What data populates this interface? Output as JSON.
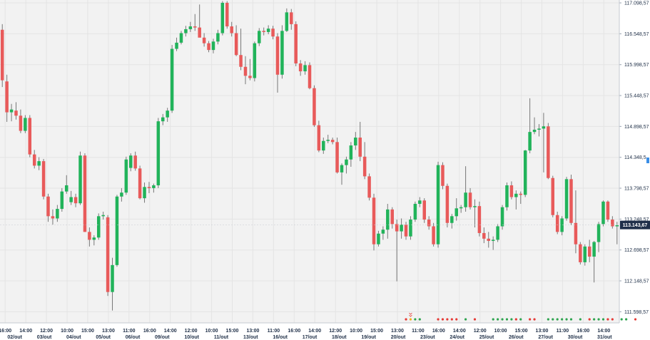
{
  "chart_data": {
    "type": "candlestick",
    "title": "",
    "xlabel": "",
    "ylabel": "",
    "ylim": [
      111400,
      117150
    ],
    "grid": true,
    "colors": {
      "up": "#21b35a",
      "down": "#e85a5a",
      "wick": "#777777",
      "grid": "#e4e4e4",
      "plot_bg": "#f2f2f2",
      "last_price_bg": "#1f2f4a",
      "marker_red": "#e53935",
      "marker_green": "#2ea44f",
      "marker_yellow": "#f2b01e"
    },
    "y_ticks": [
      "117.098,57",
      "116.548,57",
      "115.998,57",
      "115.448,57",
      "114.898,57",
      "114.348,5",
      "113.798,57",
      "113.248,57",
      "112.698,57",
      "112.148,57",
      "111.598,57"
    ],
    "y_tick_values": [
      117098.57,
      116548.57,
      115998.57,
      115448.57,
      114898.57,
      114348.5,
      113798.57,
      113248.57,
      112698.57,
      112148.57,
      111598.57
    ],
    "last_price": {
      "label": "113.143,67",
      "value": 113143.67
    },
    "x_time_labels": [
      "16:00",
      "14:00",
      "12:00",
      "10:00",
      "15:00",
      "13:00",
      "11:00",
      "16:00",
      "14:00",
      "12:00",
      "10:00",
      "15:00",
      "13:00",
      "11:00",
      "16:00",
      "14:00",
      "12:00",
      "10:00",
      "15:00",
      "13:00",
      "11:00",
      "16:00",
      "14:00",
      "12:00",
      "10:00",
      "15:00",
      "13:00",
      "11:00",
      "16:00",
      "14:00"
    ],
    "x_date_labels": [
      "02/out",
      "03/out",
      "04/out",
      "05/out",
      "06/out",
      "09/out",
      "10/out",
      "11/out",
      "13/out",
      "16/out",
      "17/out",
      "18/out",
      "19/out",
      "20/out",
      "23/out",
      "24/out",
      "25/out",
      "26/out",
      "27/out",
      "30/out",
      "31/out"
    ],
    "candles": [
      {
        "o": 116620,
        "h": 116720,
        "l": 115600,
        "c": 115720
      },
      {
        "o": 115700,
        "h": 115820,
        "l": 114980,
        "c": 115150
      },
      {
        "o": 115150,
        "h": 115300,
        "l": 114990,
        "c": 115200
      },
      {
        "o": 115180,
        "h": 115330,
        "l": 115020,
        "c": 115090
      },
      {
        "o": 115090,
        "h": 115200,
        "l": 114780,
        "c": 114820
      },
      {
        "o": 114820,
        "h": 115100,
        "l": 114780,
        "c": 115050
      },
      {
        "o": 115050,
        "h": 115100,
        "l": 114350,
        "c": 114400
      },
      {
        "o": 114400,
        "h": 114480,
        "l": 114150,
        "c": 114200
      },
      {
        "o": 114200,
        "h": 114350,
        "l": 114120,
        "c": 114280
      },
      {
        "o": 114280,
        "h": 114320,
        "l": 113600,
        "c": 113650
      },
      {
        "o": 113650,
        "h": 113700,
        "l": 113200,
        "c": 113300
      },
      {
        "o": 113300,
        "h": 113420,
        "l": 113150,
        "c": 113260
      },
      {
        "o": 113260,
        "h": 113500,
        "l": 113200,
        "c": 113430
      },
      {
        "o": 113430,
        "h": 113800,
        "l": 113380,
        "c": 113740
      },
      {
        "o": 113740,
        "h": 114030,
        "l": 113700,
        "c": 113850
      },
      {
        "o": 113550,
        "h": 113750,
        "l": 113500,
        "c": 113640
      },
      {
        "o": 113640,
        "h": 113700,
        "l": 113460,
        "c": 113530
      },
      {
        "o": 113530,
        "h": 114450,
        "l": 113500,
        "c": 114380
      },
      {
        "o": 114380,
        "h": 114420,
        "l": 113020,
        "c": 113020
      },
      {
        "o": 113020,
        "h": 113100,
        "l": 112760,
        "c": 112880
      },
      {
        "o": 112880,
        "h": 112960,
        "l": 112780,
        "c": 112920
      },
      {
        "o": 112920,
        "h": 113350,
        "l": 112880,
        "c": 113300
      },
      {
        "o": 113300,
        "h": 113380,
        "l": 113240,
        "c": 113320
      },
      {
        "o": 113280,
        "h": 113320,
        "l": 111880,
        "c": 111950
      },
      {
        "o": 111950,
        "h": 112560,
        "l": 111620,
        "c": 112430
      },
      {
        "o": 112430,
        "h": 113680,
        "l": 112400,
        "c": 113650
      },
      {
        "o": 113650,
        "h": 113800,
        "l": 113560,
        "c": 113720
      },
      {
        "o": 113720,
        "h": 114360,
        "l": 113680,
        "c": 114310
      },
      {
        "o": 114160,
        "h": 114420,
        "l": 114100,
        "c": 114380
      },
      {
        "o": 114380,
        "h": 114450,
        "l": 114110,
        "c": 114150
      },
      {
        "o": 114150,
        "h": 114200,
        "l": 113600,
        "c": 113620
      },
      {
        "o": 113620,
        "h": 113900,
        "l": 113540,
        "c": 113820
      },
      {
        "o": 113820,
        "h": 113910,
        "l": 113710,
        "c": 113800
      },
      {
        "o": 113800,
        "h": 113880,
        "l": 113720,
        "c": 113850
      },
      {
        "o": 113850,
        "h": 115050,
        "l": 113800,
        "c": 114990
      },
      {
        "o": 114990,
        "h": 115120,
        "l": 114920,
        "c": 115060
      },
      {
        "o": 115060,
        "h": 115230,
        "l": 114980,
        "c": 115180
      },
      {
        "o": 115180,
        "h": 116350,
        "l": 115140,
        "c": 116280
      },
      {
        "o": 116280,
        "h": 116480,
        "l": 116240,
        "c": 116390
      },
      {
        "o": 116390,
        "h": 116600,
        "l": 116360,
        "c": 116560
      },
      {
        "o": 116560,
        "h": 116690,
        "l": 116500,
        "c": 116630
      },
      {
        "o": 116630,
        "h": 116760,
        "l": 116580,
        "c": 116680
      },
      {
        "o": 116680,
        "h": 116900,
        "l": 116600,
        "c": 116660
      },
      {
        "o": 116660,
        "h": 117070,
        "l": 116530,
        "c": 116480
      },
      {
        "o": 116480,
        "h": 116560,
        "l": 116320,
        "c": 116380
      },
      {
        "o": 116380,
        "h": 116420,
        "l": 116220,
        "c": 116260
      },
      {
        "o": 116260,
        "h": 116460,
        "l": 116200,
        "c": 116410
      },
      {
        "o": 116410,
        "h": 116620,
        "l": 116360,
        "c": 116560
      },
      {
        "o": 116560,
        "h": 117130,
        "l": 116520,
        "c": 117100
      },
      {
        "o": 117100,
        "h": 117130,
        "l": 116640,
        "c": 116680
      },
      {
        "o": 116680,
        "h": 116760,
        "l": 116500,
        "c": 116560
      },
      {
        "o": 116560,
        "h": 116700,
        "l": 116150,
        "c": 116170
      },
      {
        "o": 116170,
        "h": 116640,
        "l": 115900,
        "c": 115960
      },
      {
        "o": 115960,
        "h": 116150,
        "l": 115650,
        "c": 115800
      },
      {
        "o": 115800,
        "h": 116100,
        "l": 115720,
        "c": 115760
      },
      {
        "o": 115760,
        "h": 116410,
        "l": 115700,
        "c": 116380
      },
      {
        "o": 116380,
        "h": 116650,
        "l": 116330,
        "c": 116600
      },
      {
        "o": 116600,
        "h": 116660,
        "l": 116520,
        "c": 116580
      },
      {
        "o": 116580,
        "h": 116700,
        "l": 116540,
        "c": 116640
      },
      {
        "o": 116640,
        "h": 116690,
        "l": 116450,
        "c": 116500
      },
      {
        "o": 116500,
        "h": 116560,
        "l": 115500,
        "c": 115820
      },
      {
        "o": 115820,
        "h": 116700,
        "l": 115750,
        "c": 116600
      },
      {
        "o": 116600,
        "h": 117000,
        "l": 116580,
        "c": 116930
      },
      {
        "o": 116930,
        "h": 116990,
        "l": 116620,
        "c": 116720
      },
      {
        "o": 116720,
        "h": 116770,
        "l": 115970,
        "c": 116020
      },
      {
        "o": 116020,
        "h": 116080,
        "l": 115800,
        "c": 115880
      },
      {
        "o": 115880,
        "h": 116060,
        "l": 115820,
        "c": 115990
      },
      {
        "o": 115990,
        "h": 116040,
        "l": 115560,
        "c": 115580
      },
      {
        "o": 115580,
        "h": 115630,
        "l": 114890,
        "c": 114920
      },
      {
        "o": 114920,
        "h": 115000,
        "l": 114440,
        "c": 114470
      },
      {
        "o": 114470,
        "h": 114700,
        "l": 114410,
        "c": 114640
      },
      {
        "o": 114640,
        "h": 114750,
        "l": 114600,
        "c": 114660
      },
      {
        "o": 114660,
        "h": 114700,
        "l": 114580,
        "c": 114620
      },
      {
        "o": 114620,
        "h": 114700,
        "l": 114060,
        "c": 114080
      },
      {
        "o": 114080,
        "h": 114240,
        "l": 113860,
        "c": 114210
      },
      {
        "o": 114210,
        "h": 114360,
        "l": 114060,
        "c": 114310
      },
      {
        "o": 114310,
        "h": 114620,
        "l": 114180,
        "c": 114560
      },
      {
        "o": 114560,
        "h": 114800,
        "l": 114480,
        "c": 114700
      },
      {
        "o": 114700,
        "h": 114980,
        "l": 114280,
        "c": 114360
      },
      {
        "o": 114360,
        "h": 114620,
        "l": 113960,
        "c": 114010
      },
      {
        "o": 114010,
        "h": 114060,
        "l": 113580,
        "c": 113630
      },
      {
        "o": 113630,
        "h": 113700,
        "l": 112690,
        "c": 112800
      },
      {
        "o": 112800,
        "h": 113040,
        "l": 112760,
        "c": 112990
      },
      {
        "o": 112990,
        "h": 113120,
        "l": 112880,
        "c": 113060
      },
      {
        "o": 113060,
        "h": 113520,
        "l": 112900,
        "c": 113420
      },
      {
        "o": 113420,
        "h": 113460,
        "l": 113080,
        "c": 113160
      },
      {
        "o": 113160,
        "h": 113240,
        "l": 112140,
        "c": 113030
      },
      {
        "o": 113030,
        "h": 113260,
        "l": 112900,
        "c": 113150
      },
      {
        "o": 113150,
        "h": 113200,
        "l": 112880,
        "c": 112940
      },
      {
        "o": 112940,
        "h": 113300,
        "l": 112880,
        "c": 113240
      },
      {
        "o": 113240,
        "h": 113560,
        "l": 113200,
        "c": 113520
      },
      {
        "o": 113520,
        "h": 113640,
        "l": 113460,
        "c": 113580
      },
      {
        "o": 113580,
        "h": 113620,
        "l": 113180,
        "c": 113240
      },
      {
        "o": 113240,
        "h": 113300,
        "l": 113060,
        "c": 113120
      },
      {
        "o": 113120,
        "h": 113180,
        "l": 112760,
        "c": 112800
      },
      {
        "o": 112800,
        "h": 114270,
        "l": 112740,
        "c": 114210
      },
      {
        "o": 114210,
        "h": 114260,
        "l": 113780,
        "c": 113840
      },
      {
        "o": 113840,
        "h": 113880,
        "l": 113100,
        "c": 113180
      },
      {
        "o": 113180,
        "h": 113340,
        "l": 113080,
        "c": 113300
      },
      {
        "o": 113300,
        "h": 113620,
        "l": 113220,
        "c": 113440
      },
      {
        "o": 113440,
        "h": 113500,
        "l": 113360,
        "c": 113460
      },
      {
        "o": 113460,
        "h": 114190,
        "l": 113380,
        "c": 113720
      },
      {
        "o": 113720,
        "h": 113800,
        "l": 113420,
        "c": 113460
      },
      {
        "o": 113460,
        "h": 113600,
        "l": 113100,
        "c": 113480
      },
      {
        "o": 113480,
        "h": 113560,
        "l": 112940,
        "c": 113000
      },
      {
        "o": 113000,
        "h": 113100,
        "l": 112820,
        "c": 112900
      },
      {
        "o": 112900,
        "h": 113020,
        "l": 112740,
        "c": 112860
      },
      {
        "o": 112860,
        "h": 112940,
        "l": 112700,
        "c": 112880
      },
      {
        "o": 112880,
        "h": 113160,
        "l": 112840,
        "c": 113120
      },
      {
        "o": 113120,
        "h": 113500,
        "l": 113060,
        "c": 113460
      },
      {
        "o": 113460,
        "h": 113900,
        "l": 113400,
        "c": 113850
      },
      {
        "o": 113850,
        "h": 113920,
        "l": 113600,
        "c": 113640
      },
      {
        "o": 113640,
        "h": 113760,
        "l": 113420,
        "c": 113700
      },
      {
        "o": 113700,
        "h": 113740,
        "l": 113520,
        "c": 113680
      },
      {
        "o": 113680,
        "h": 114480,
        "l": 113640,
        "c": 114470
      },
      {
        "o": 114470,
        "h": 115400,
        "l": 114420,
        "c": 114800
      },
      {
        "o": 114800,
        "h": 115060,
        "l": 114760,
        "c": 114840
      },
      {
        "o": 114840,
        "h": 114940,
        "l": 114720,
        "c": 114860
      },
      {
        "o": 114860,
        "h": 115140,
        "l": 114080,
        "c": 114900
      },
      {
        "o": 114900,
        "h": 114960,
        "l": 113960,
        "c": 113980
      },
      {
        "o": 113980,
        "h": 114020,
        "l": 113280,
        "c": 113320
      },
      {
        "o": 113320,
        "h": 113380,
        "l": 112980,
        "c": 113020
      },
      {
        "o": 113020,
        "h": 113300,
        "l": 112960,
        "c": 113260
      },
      {
        "o": 113260,
        "h": 114000,
        "l": 113220,
        "c": 113960
      },
      {
        "o": 113960,
        "h": 114040,
        "l": 113140,
        "c": 113180
      },
      {
        "o": 113180,
        "h": 113760,
        "l": 112640,
        "c": 112800
      },
      {
        "o": 112800,
        "h": 112840,
        "l": 112440,
        "c": 112480
      },
      {
        "o": 112480,
        "h": 112800,
        "l": 112420,
        "c": 112760
      },
      {
        "o": 112760,
        "h": 112880,
        "l": 112480,
        "c": 112580
      },
      {
        "o": 112580,
        "h": 112860,
        "l": 112120,
        "c": 112840
      },
      {
        "o": 112840,
        "h": 113200,
        "l": 112660,
        "c": 113160
      },
      {
        "o": 113160,
        "h": 113580,
        "l": 113120,
        "c": 113560
      },
      {
        "o": 113560,
        "h": 113580,
        "l": 113200,
        "c": 113240
      },
      {
        "o": 113240,
        "h": 113300,
        "l": 113080,
        "c": 113120
      },
      {
        "o": 113120,
        "h": 113200,
        "l": 112800,
        "c": 113140
      }
    ],
    "markers": [
      {
        "i": 88,
        "color": "red"
      },
      {
        "i": 89,
        "color": "yellow"
      },
      {
        "i": 90,
        "color": "green"
      },
      {
        "i": 91,
        "color": "green"
      },
      {
        "i": 95,
        "color": "red"
      },
      {
        "i": 96,
        "color": "red"
      },
      {
        "i": 97,
        "color": "red"
      },
      {
        "i": 98,
        "color": "red"
      },
      {
        "i": 99,
        "color": "red"
      },
      {
        "i": 101,
        "color": "green"
      },
      {
        "i": 103,
        "color": "red"
      },
      {
        "i": 107,
        "color": "green"
      },
      {
        "i": 108,
        "color": "green"
      },
      {
        "i": 109,
        "color": "green"
      },
      {
        "i": 110,
        "color": "green"
      },
      {
        "i": 111,
        "color": "green"
      },
      {
        "i": 112,
        "color": "red"
      },
      {
        "i": 113,
        "color": "green"
      },
      {
        "i": 115,
        "color": "red"
      },
      {
        "i": 116,
        "color": "red"
      },
      {
        "i": 119,
        "color": "green"
      },
      {
        "i": 120,
        "color": "green"
      },
      {
        "i": 121,
        "color": "green"
      },
      {
        "i": 122,
        "color": "green"
      },
      {
        "i": 123,
        "color": "green"
      },
      {
        "i": 124,
        "color": "green"
      },
      {
        "i": 126,
        "color": "green"
      },
      {
        "i": 128,
        "color": "red"
      },
      {
        "i": 129,
        "color": "green"
      },
      {
        "i": 130,
        "color": "green"
      },
      {
        "i": 131,
        "color": "green"
      },
      {
        "i": 132,
        "color": "red"
      },
      {
        "i": 133,
        "color": "red"
      },
      {
        "i": 135,
        "color": "green"
      },
      {
        "i": 136,
        "color": "green"
      },
      {
        "i": 138,
        "color": "red"
      }
    ]
  }
}
